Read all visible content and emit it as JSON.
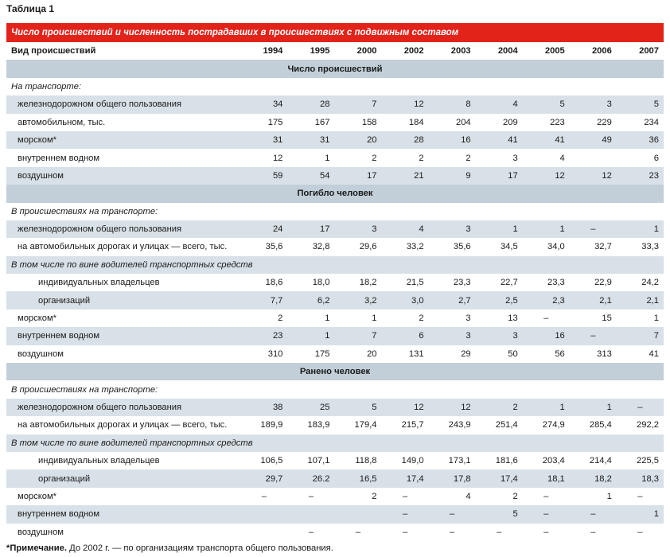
{
  "caption": "Таблица 1",
  "title": "Число происшествий и численность пострадавших в происшествиях с подвижным составом",
  "header": {
    "label": "Вид происшествий",
    "years": [
      "1994",
      "1995",
      "2000",
      "2002",
      "2003",
      "2004",
      "2005",
      "2006",
      "2007"
    ]
  },
  "rows": [
    {
      "type": "section",
      "label": "Число происшествий"
    },
    {
      "type": "subhead",
      "label": "На транспорте:",
      "shade": false
    },
    {
      "type": "data",
      "label": "железнодорожном общего пользования",
      "level": 1,
      "shade": true,
      "values": [
        "34",
        "28",
        "7",
        "12",
        "8",
        "4",
        "5",
        "3",
        "5"
      ]
    },
    {
      "type": "data",
      "label": "автомобильном, тыс.",
      "level": 1,
      "shade": false,
      "values": [
        "175",
        "167",
        "158",
        "184",
        "204",
        "209",
        "223",
        "229",
        "234"
      ]
    },
    {
      "type": "data",
      "label": "морском*",
      "level": 1,
      "shade": true,
      "values": [
        "31",
        "31",
        "20",
        "28",
        "16",
        "41",
        "41",
        "49",
        "36"
      ]
    },
    {
      "type": "data",
      "label": "внутреннем водном",
      "level": 1,
      "shade": false,
      "values": [
        "12",
        "1",
        "2",
        "2",
        "2",
        "3",
        "4",
        "",
        "6"
      ]
    },
    {
      "type": "data",
      "label": "воздушном",
      "level": 1,
      "shade": true,
      "values": [
        "59",
        "54",
        "17",
        "21",
        "9",
        "17",
        "12",
        "12",
        "23"
      ]
    },
    {
      "type": "section",
      "label": "Погибло человек"
    },
    {
      "type": "subhead",
      "label": "В происшествиях на транспорте:",
      "shade": false
    },
    {
      "type": "data",
      "label": "железнодорожном общего пользования",
      "level": 1,
      "shade": true,
      "values": [
        "24",
        "17",
        "3",
        "4",
        "3",
        "1",
        "1",
        "–",
        "1"
      ]
    },
    {
      "type": "data",
      "label": "на автомобильных дорогах и улицах — всего, тыс.",
      "level": 1,
      "shade": false,
      "values": [
        "35,6",
        "32,8",
        "29,6",
        "33,2",
        "35,6",
        "34,5",
        "34,0",
        "32,7",
        "33,3"
      ]
    },
    {
      "type": "subhead",
      "label": "В том числе по вине водителей транспортных средств",
      "shade": true
    },
    {
      "type": "data",
      "label": "индивидуальных владельцев",
      "level": 2,
      "shade": false,
      "values": [
        "18,6",
        "18,0",
        "18,2",
        "21,5",
        "23,3",
        "22,7",
        "23,3",
        "22,9",
        "24,2"
      ]
    },
    {
      "type": "data",
      "label": "организаций",
      "level": 2,
      "shade": true,
      "values": [
        "7,7",
        "6,2",
        "3,2",
        "3,0",
        "2,7",
        "2,5",
        "2,3",
        "2,1",
        "2,1"
      ]
    },
    {
      "type": "data",
      "label": "морском*",
      "level": 1,
      "shade": false,
      "values": [
        "2",
        "1",
        "1",
        "2",
        "3",
        "13",
        "–",
        "15",
        "1"
      ]
    },
    {
      "type": "data",
      "label": "внутреннем водном",
      "level": 1,
      "shade": true,
      "values": [
        "23",
        "1",
        "7",
        "6",
        "3",
        "3",
        "16",
        "–",
        "7"
      ]
    },
    {
      "type": "data",
      "label": "воздушном",
      "level": 1,
      "shade": false,
      "values": [
        "310",
        "175",
        "20",
        "131",
        "29",
        "50",
        "56",
        "313",
        "41"
      ]
    },
    {
      "type": "section",
      "label": "Ранено человек"
    },
    {
      "type": "subhead",
      "label": "В происшествиях на транспорте:",
      "shade": false
    },
    {
      "type": "data",
      "label": "железнодорожном общего пользования",
      "level": 1,
      "shade": true,
      "values": [
        "38",
        "25",
        "5",
        "12",
        "12",
        "2",
        "1",
        "1",
        "–"
      ]
    },
    {
      "type": "data",
      "label": "на автомобильных дорогах и улицах — всего, тыс.",
      "level": 1,
      "shade": false,
      "values": [
        "189,9",
        "183,9",
        "179,4",
        "215,7",
        "243,9",
        "251,4",
        "274,9",
        "285,4",
        "292,2"
      ]
    },
    {
      "type": "subhead",
      "label": "В том числе по вине водителей транспортных средств",
      "shade": true
    },
    {
      "type": "data",
      "label": "индивидуальных владельцев",
      "level": 2,
      "shade": false,
      "values": [
        "106,5",
        "107,1",
        "118,8",
        "149,0",
        "173,1",
        "181,6",
        "203,4",
        "214,4",
        "225,5"
      ]
    },
    {
      "type": "data",
      "label": "организаций",
      "level": 2,
      "shade": true,
      "values": [
        "29,7",
        "26.2",
        "16,5",
        "17,4",
        "17,8",
        "17,4",
        "18,1",
        "18,2",
        "18,3"
      ]
    },
    {
      "type": "data",
      "label": "морском*",
      "level": 1,
      "shade": false,
      "values": [
        "–",
        "–",
        "2",
        "–",
        "4",
        "2",
        "–",
        "1",
        "–"
      ]
    },
    {
      "type": "data",
      "label": "внутреннем водном",
      "level": 1,
      "shade": true,
      "values": [
        "",
        "",
        "",
        "–",
        "–",
        "5",
        "–",
        "–",
        "1"
      ]
    },
    {
      "type": "data",
      "label": "воздушном",
      "level": 1,
      "shade": false,
      "values": [
        "",
        "–",
        "–",
        "–",
        "–",
        "–",
        "–",
        "–",
        "–"
      ]
    }
  ],
  "note": {
    "label": "*Примечание.",
    "text": " До 2002 г. — по организациям транспорта общего пользования."
  },
  "colors": {
    "title_bg": "#e2231a",
    "section_bg": "#c2cfd8",
    "row_shade": "#d8e1e7"
  }
}
